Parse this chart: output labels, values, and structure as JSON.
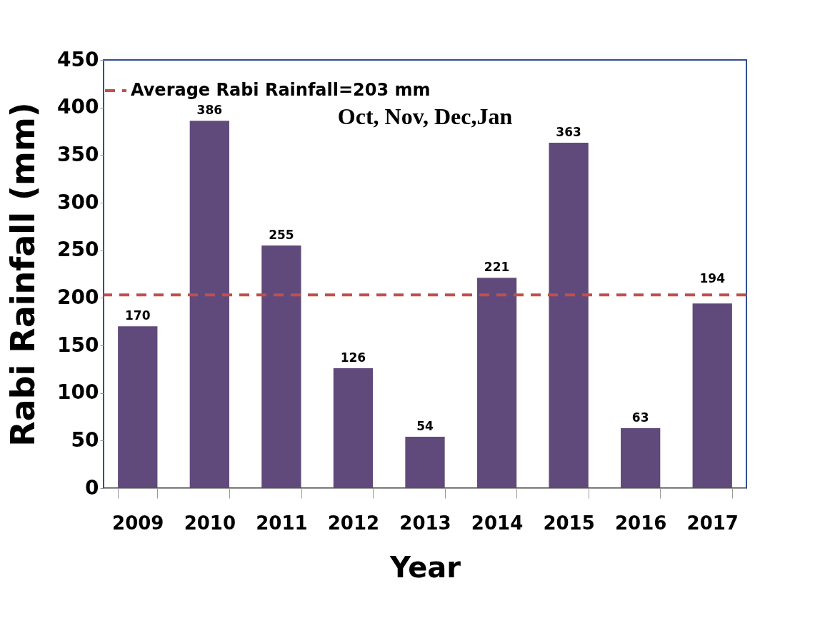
{
  "chart_data": {
    "type": "bar",
    "xlabel": "Year",
    "ylabel": "Rabi Rainfall (mm)",
    "categories": [
      "2009",
      "2010",
      "2011",
      "2012",
      "2013",
      "2014",
      "2015",
      "2016",
      "2017"
    ],
    "values": [
      170,
      386,
      255,
      126,
      54,
      221,
      363,
      63,
      194
    ],
    "color": "#604a7b",
    "data_labels": true,
    "ylim": [
      0,
      450
    ],
    "yticks": [
      0,
      50,
      100,
      150,
      200,
      250,
      300,
      350,
      400,
      450
    ],
    "ref_lines": [
      {
        "axis": "y",
        "value": 203,
        "label": "Average Rabi Rainfall=203 mm",
        "color": "#c0504d",
        "line_style": "dashed"
      }
    ],
    "annotations": [
      "Oct, Nov, Dec,Jan"
    ],
    "legend": "top",
    "grid": false
  }
}
